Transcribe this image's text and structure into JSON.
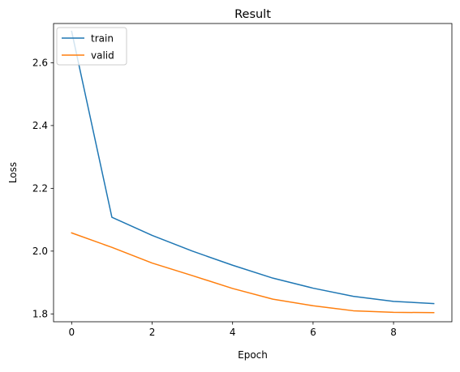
{
  "chart_data": {
    "type": "line",
    "title": "Result",
    "xlabel": "Epoch",
    "ylabel": "Loss",
    "xlim": [
      -0.45,
      9.45
    ],
    "ylim": [
      1.775,
      2.725
    ],
    "xticks": [
      0,
      2,
      4,
      6,
      8
    ],
    "xtick_labels": [
      "0",
      "2",
      "4",
      "6",
      "8"
    ],
    "yticks": [
      1.8,
      2.0,
      2.2,
      2.4,
      2.6
    ],
    "ytick_labels": [
      "1.8",
      "2.0",
      "2.2",
      "2.4",
      "2.6"
    ],
    "grid": false,
    "legend_position": "top-left",
    "x": [
      0,
      1,
      2,
      3,
      4,
      5,
      6,
      7,
      8,
      9
    ],
    "series": [
      {
        "name": "train",
        "color": "#1f77b4",
        "values": [
          2.7,
          2.108,
          2.05,
          2.0,
          1.955,
          1.914,
          1.882,
          1.856,
          1.84,
          1.833
        ]
      },
      {
        "name": "valid",
        "color": "#ff7f0e",
        "values": [
          2.058,
          2.012,
          1.962,
          1.922,
          1.881,
          1.847,
          1.826,
          1.81,
          1.805,
          1.804
        ]
      }
    ]
  }
}
